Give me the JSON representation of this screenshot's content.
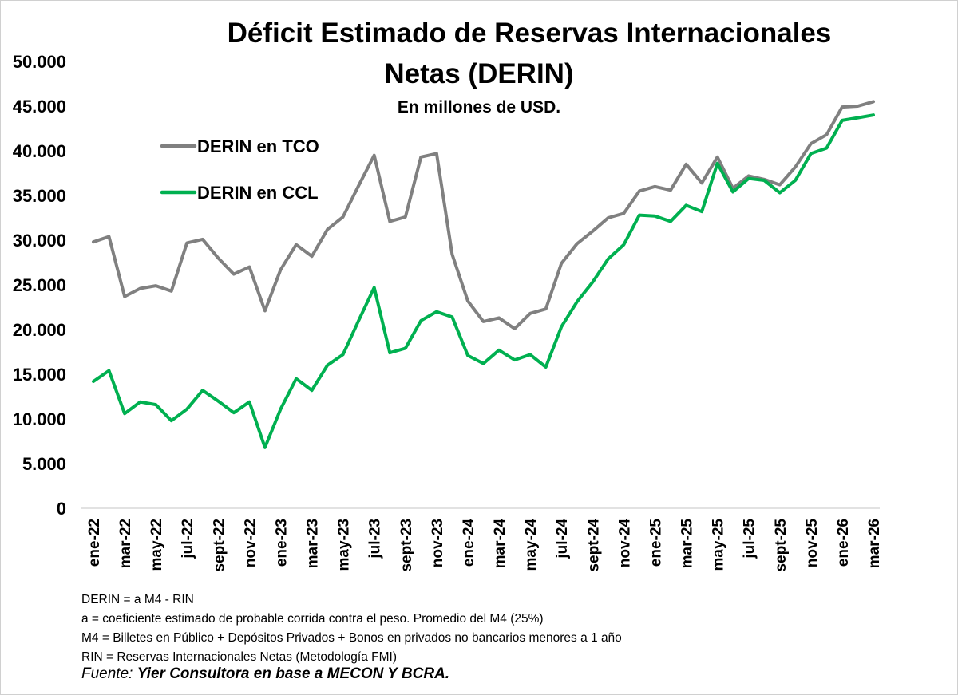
{
  "chart_data": {
    "type": "line",
    "title_line1": "Déficit Estimado de Reservas Internacionales",
    "title_line2": "Netas (DERIN)",
    "subtitle": "En millones de USD.",
    "xlabel": "",
    "ylabel": "",
    "ylim": [
      0,
      50000
    ],
    "yticks": [
      0,
      5000,
      10000,
      15000,
      20000,
      25000,
      30000,
      35000,
      40000,
      45000,
      50000
    ],
    "ytick_labels": [
      "0",
      "5.000",
      "10.000",
      "15.000",
      "20.000",
      "25.000",
      "30.000",
      "35.000",
      "40.000",
      "45.000",
      "50.000"
    ],
    "grid": false,
    "legend_position": "top-left",
    "x": [
      "ene-22",
      "feb-22",
      "mar-22",
      "abr-22",
      "may-22",
      "jun-22",
      "jul-22",
      "ago-22",
      "sept-22",
      "oct-22",
      "nov-22",
      "dic-22",
      "ene-23",
      "feb-23",
      "mar-23",
      "abr-23",
      "may-23",
      "jun-23",
      "jul-23",
      "ago-23",
      "sept-23",
      "oct-23",
      "nov-23",
      "dic-23",
      "ene-24",
      "feb-24",
      "mar-24",
      "abr-24",
      "may-24",
      "jun-24",
      "jul-24",
      "ago-24",
      "sept-24",
      "oct-24",
      "nov-24",
      "dic-24",
      "ene-25",
      "feb-25",
      "mar-25",
      "abr-25",
      "may-25",
      "jun-25",
      "jul-25",
      "ago-25",
      "sept-25",
      "oct-25",
      "nov-25",
      "dic-25",
      "ene-26",
      "feb-26",
      "mar-26"
    ],
    "x_labeled": [
      "ene-22",
      "mar-22",
      "may-22",
      "jul-22",
      "sept-22",
      "nov-22",
      "ene-23",
      "mar-23",
      "may-23",
      "jul-23",
      "sept-23",
      "nov-23",
      "ene-24",
      "mar-24",
      "may-24",
      "jul-24",
      "sept-24",
      "nov-24",
      "ene-25",
      "mar-25",
      "may-25",
      "jul-25",
      "sept-25",
      "nov-25",
      "ene-26",
      "mar-26"
    ],
    "series": [
      {
        "name": "DERIN en TCO",
        "color": "#808080",
        "values": [
          29800,
          30400,
          23700,
          24600,
          24900,
          24300,
          29700,
          30100,
          28000,
          26200,
          27000,
          22100,
          26700,
          29500,
          28200,
          31200,
          32600,
          36100,
          39500,
          32100,
          32600,
          39300,
          39700,
          28400,
          23200,
          20900,
          21300,
          20100,
          21800,
          22300,
          27400,
          29600,
          31000,
          32500,
          33000,
          35500,
          36000,
          35600,
          38500,
          36400,
          39300,
          35800,
          37200,
          36800,
          36200,
          38200,
          40800,
          41800,
          44900,
          45000,
          45500
        ]
      },
      {
        "name": "DERIN en CCL",
        "color": "#00B050",
        "values": [
          14200,
          15400,
          10600,
          11900,
          11600,
          9800,
          11100,
          13200,
          12000,
          10700,
          11900,
          6800,
          11100,
          14500,
          13200,
          16000,
          17200,
          21000,
          24700,
          17400,
          17900,
          21000,
          22000,
          21400,
          17100,
          16200,
          17700,
          16600,
          17200,
          15800,
          20300,
          23100,
          25300,
          27900,
          29500,
          32800,
          32700,
          32100,
          33900,
          33200,
          38600,
          35400,
          36900,
          36700,
          35300,
          36700,
          39700,
          40300,
          43400,
          43700,
          44000
        ]
      }
    ]
  },
  "notes": [
    "DERIN = a M4 - RIN",
    "a = coeficiente estimado de probable corrida contra el peso. Promedio del M4 (25%)",
    "M4 = Billetes en Público + Depósitos Privados + Bonos en privados no bancarios menores a 1 año",
    "RIN = Reservas Internacionales Netas (Metodología FMI)"
  ],
  "source": {
    "prefix": "Fuente: ",
    "text": "Yier Consultora en base a MECON Y BCRA."
  }
}
